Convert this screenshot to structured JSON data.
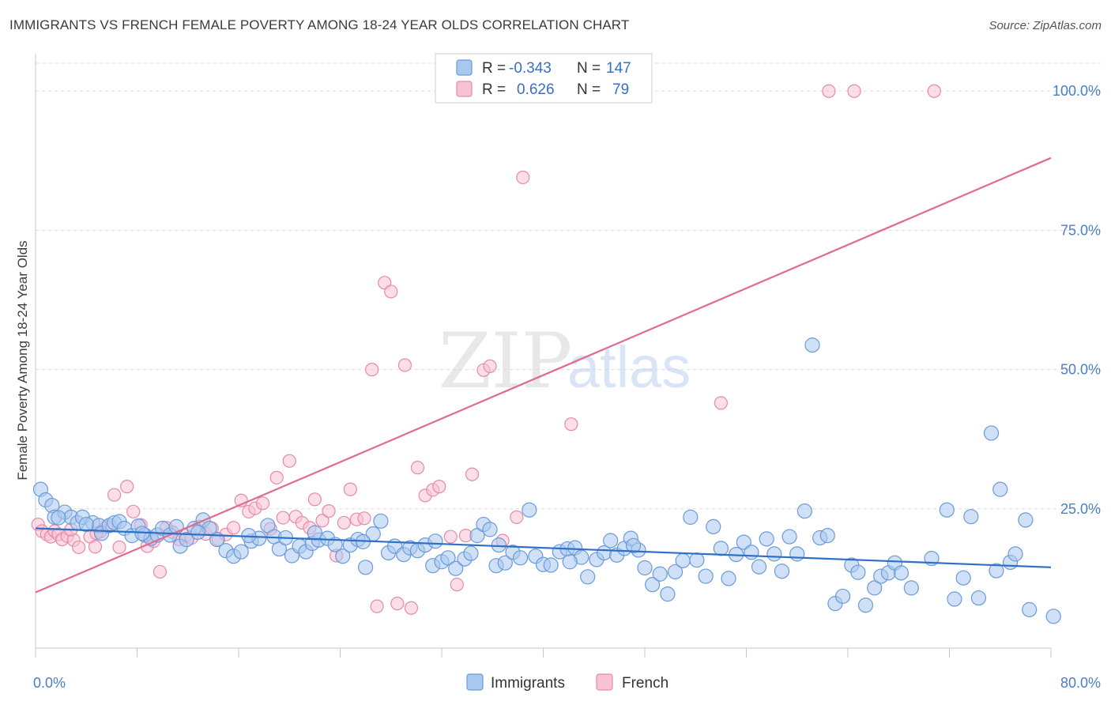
{
  "title": "IMMIGRANTS VS FRENCH FEMALE POVERTY AMONG 18-24 YEAR OLDS CORRELATION CHART",
  "source": "Source: ZipAtlas.com",
  "watermark": {
    "zip": "ZIP",
    "atlas": "atlas"
  },
  "colors": {
    "immigrants_fill": "#a9c8f0",
    "immigrants_stroke": "#6a9ad8",
    "immigrants_line": "#2f6fc6",
    "french_fill": "#f7c3d3",
    "french_stroke": "#e88aa8",
    "french_line": "#e06b92",
    "tick_text": "#4a7fc4",
    "grid": "#dddddd"
  },
  "legend": {
    "rows": [
      {
        "r_label": "R =",
        "r_value": "-0.343",
        "n_label": "N =",
        "n_value": "147"
      },
      {
        "r_label": "R =",
        "r_value": "0.626",
        "n_label": "N =",
        "n_value": "79"
      }
    ]
  },
  "chart_data": {
    "type": "scatter",
    "title": "IMMIGRANTS VS FRENCH FEMALE POVERTY AMONG 18-24 YEAR OLDS CORRELATION CHART",
    "xlabel": "",
    "ylabel": "Female Poverty Among 18-24 Year Olds",
    "xlim": [
      0,
      80
    ],
    "ylim": [
      0,
      105
    ],
    "x_tick_labels": [
      "0.0%",
      "80.0%"
    ],
    "y_ticks": [
      25,
      50,
      75,
      100
    ],
    "y_tick_labels": [
      "25.0%",
      "50.0%",
      "75.0%",
      "100.0%"
    ],
    "grid": true,
    "legend_position": "top-center",
    "series": [
      {
        "name": "Immigrants",
        "color": "#a9c8f0",
        "trend": {
          "x": [
            0,
            80
          ],
          "y": [
            21.5,
            14.5
          ]
        },
        "points": [
          [
            0.4,
            28.5
          ],
          [
            0.8,
            26.6
          ],
          [
            1.3,
            25.6
          ],
          [
            1.5,
            23.5
          ],
          [
            2.3,
            24.4
          ],
          [
            2.8,
            23.5
          ],
          [
            3.3,
            22.5
          ],
          [
            3.7,
            23.5
          ],
          [
            4.5,
            22.5
          ],
          [
            5,
            22
          ],
          [
            5.2,
            20.6
          ],
          [
            5.8,
            22
          ],
          [
            6.2,
            22.5
          ],
          [
            6.6,
            22.7
          ],
          [
            7,
            21.5
          ],
          [
            7.6,
            20.2
          ],
          [
            8.1,
            21.9
          ],
          [
            8.6,
            20.3
          ],
          [
            9.1,
            19.7
          ],
          [
            9.6,
            20.3
          ],
          [
            10,
            21.5
          ],
          [
            10.6,
            20.3
          ],
          [
            11.1,
            21.8
          ],
          [
            11.4,
            18.3
          ],
          [
            11.9,
            19.5
          ],
          [
            12.5,
            21.5
          ],
          [
            13.2,
            23
          ],
          [
            13.7,
            21.5
          ],
          [
            14.3,
            19.5
          ],
          [
            15,
            17.5
          ],
          [
            15.6,
            16.5
          ],
          [
            16.2,
            17.3
          ],
          [
            17,
            19.2
          ],
          [
            17.6,
            19.7
          ],
          [
            18.3,
            22
          ],
          [
            18.8,
            20
          ],
          [
            19.2,
            17.8
          ],
          [
            19.7,
            19.8
          ],
          [
            20.2,
            16.6
          ],
          [
            20.8,
            18.3
          ],
          [
            21.3,
            17.3
          ],
          [
            21.8,
            18.8
          ],
          [
            22.3,
            19.4
          ],
          [
            23,
            19.7
          ],
          [
            23.6,
            18.6
          ],
          [
            24.2,
            16.5
          ],
          [
            24.8,
            18.5
          ],
          [
            25.4,
            19.5
          ],
          [
            26,
            14.5
          ],
          [
            26.6,
            20.5
          ],
          [
            27.2,
            22.8
          ],
          [
            27.8,
            17.1
          ],
          [
            28.3,
            18.3
          ],
          [
            29,
            16.8
          ],
          [
            29.5,
            18
          ],
          [
            30.1,
            17.5
          ],
          [
            30.7,
            18.5
          ],
          [
            31.3,
            14.8
          ],
          [
            32,
            15.5
          ],
          [
            32.5,
            16.2
          ],
          [
            33.1,
            14.3
          ],
          [
            33.8,
            16
          ],
          [
            34.3,
            17
          ],
          [
            34.8,
            20.2
          ],
          [
            35.3,
            22.2
          ],
          [
            35.8,
            21.3
          ],
          [
            36.3,
            14.8
          ],
          [
            37,
            15.3
          ],
          [
            37.6,
            17.2
          ],
          [
            38.2,
            16.2
          ],
          [
            38.9,
            24.8
          ],
          [
            39.4,
            16.5
          ],
          [
            40,
            15
          ],
          [
            40.6,
            14.9
          ],
          [
            41.3,
            17.3
          ],
          [
            41.9,
            17.8
          ],
          [
            42.5,
            18
          ],
          [
            43,
            16.3
          ],
          [
            43.5,
            12.8
          ],
          [
            44.2,
            15.9
          ],
          [
            44.8,
            17.1
          ],
          [
            45.3,
            19.3
          ],
          [
            45.8,
            16.7
          ],
          [
            46.4,
            17.9
          ],
          [
            46.9,
            19.7
          ],
          [
            47.5,
            17.6
          ],
          [
            48,
            14.4
          ],
          [
            48.6,
            11.4
          ],
          [
            49.2,
            13.3
          ],
          [
            49.8,
            9.7
          ],
          [
            50.4,
            13.7
          ],
          [
            51,
            15.7
          ],
          [
            51.6,
            23.5
          ],
          [
            52.1,
            15.8
          ],
          [
            52.8,
            12.9
          ],
          [
            53.4,
            21.8
          ],
          [
            54,
            17.9
          ],
          [
            54.6,
            12.5
          ],
          [
            55.2,
            16.8
          ],
          [
            55.8,
            19
          ],
          [
            56.4,
            17.2
          ],
          [
            57,
            14.6
          ],
          [
            57.6,
            19.6
          ],
          [
            58.2,
            16.9
          ],
          [
            58.8,
            13.8
          ],
          [
            59.4,
            20
          ],
          [
            60,
            16.9
          ],
          [
            60.6,
            24.6
          ],
          [
            61.2,
            54.4
          ],
          [
            61.8,
            19.8
          ],
          [
            62.4,
            20.2
          ],
          [
            63,
            8
          ],
          [
            63.6,
            9.3
          ],
          [
            64.3,
            14.9
          ],
          [
            64.8,
            13.6
          ],
          [
            65.4,
            7.7
          ],
          [
            66.1,
            10.8
          ],
          [
            66.6,
            12.9
          ],
          [
            67.2,
            13.5
          ],
          [
            67.7,
            15.3
          ],
          [
            68.2,
            13.5
          ],
          [
            69,
            10.8
          ],
          [
            70.6,
            16.1
          ],
          [
            71.8,
            24.8
          ],
          [
            72.4,
            8.8
          ],
          [
            73.1,
            12.6
          ],
          [
            73.7,
            23.6
          ],
          [
            74.3,
            9
          ],
          [
            75.3,
            38.6
          ],
          [
            75.7,
            13.9
          ],
          [
            76,
            28.5
          ],
          [
            76.8,
            15.4
          ],
          [
            77.2,
            16.9
          ],
          [
            78,
            23
          ],
          [
            78.3,
            6.9
          ],
          [
            80.2,
            5.7
          ],
          [
            1.8,
            23.4
          ],
          [
            4,
            22.2
          ],
          [
            8.4,
            20.6
          ],
          [
            12.8,
            20.8
          ],
          [
            16.8,
            20.2
          ],
          [
            22,
            20.7
          ],
          [
            25.8,
            19.1
          ],
          [
            31.5,
            19.2
          ],
          [
            36.5,
            18.5
          ],
          [
            42.1,
            15.5
          ],
          [
            47.1,
            18.4
          ]
        ]
      },
      {
        "name": "French",
        "color": "#f7c3d3",
        "trend": {
          "x": [
            0,
            80
          ],
          "y": [
            10,
            88
          ]
        },
        "points": [
          [
            0.2,
            22.2
          ],
          [
            0.5,
            21
          ],
          [
            0.9,
            20.4
          ],
          [
            1.2,
            20
          ],
          [
            1.5,
            21
          ],
          [
            1.8,
            20.4
          ],
          [
            2.1,
            19.5
          ],
          [
            2.5,
            20.1
          ],
          [
            3,
            19.4
          ],
          [
            3.4,
            18.1
          ],
          [
            4.3,
            20
          ],
          [
            4.7,
            18.2
          ],
          [
            5.1,
            20.9
          ],
          [
            5.6,
            21.8
          ],
          [
            6.2,
            27.5
          ],
          [
            6.6,
            18.1
          ],
          [
            7.2,
            29
          ],
          [
            7.7,
            24.5
          ],
          [
            8.3,
            22.1
          ],
          [
            8.8,
            18.3
          ],
          [
            9.3,
            19.2
          ],
          [
            9.8,
            13.7
          ],
          [
            10.3,
            21.6
          ],
          [
            10.8,
            20.8
          ],
          [
            11.3,
            19.5
          ],
          [
            11.8,
            20.2
          ],
          [
            12.3,
            19.8
          ],
          [
            12.9,
            21.8
          ],
          [
            13.4,
            20.5
          ],
          [
            13.9,
            21.5
          ],
          [
            14.4,
            19.5
          ],
          [
            15,
            20.4
          ],
          [
            15.6,
            21.6
          ],
          [
            16.2,
            26.5
          ],
          [
            16.8,
            24.5
          ],
          [
            17.3,
            25.1
          ],
          [
            17.9,
            26
          ],
          [
            18.5,
            21.4
          ],
          [
            19,
            30.6
          ],
          [
            19.5,
            23.4
          ],
          [
            20,
            33.6
          ],
          [
            20.5,
            23.6
          ],
          [
            21,
            22.5
          ],
          [
            21.6,
            21.6
          ],
          [
            22,
            26.7
          ],
          [
            22.6,
            22.9
          ],
          [
            23.1,
            24.6
          ],
          [
            23.7,
            16.6
          ],
          [
            24.3,
            22.5
          ],
          [
            24.8,
            28.5
          ],
          [
            25.3,
            23.1
          ],
          [
            25.9,
            23.3
          ],
          [
            26.5,
            50
          ],
          [
            26.9,
            7.5
          ],
          [
            27.5,
            65.6
          ],
          [
            28,
            64
          ],
          [
            28.5,
            8
          ],
          [
            29.1,
            50.8
          ],
          [
            29.6,
            7.2
          ],
          [
            30.1,
            32.4
          ],
          [
            30.7,
            27.4
          ],
          [
            31.3,
            28.4
          ],
          [
            31.8,
            29
          ],
          [
            32.7,
            20
          ],
          [
            33.2,
            11.4
          ],
          [
            33.9,
            20.2
          ],
          [
            34.4,
            31.2
          ],
          [
            35.3,
            49.9
          ],
          [
            35.8,
            50.6
          ],
          [
            36.8,
            19.3
          ],
          [
            37.9,
            23.5
          ],
          [
            38.4,
            84.5
          ],
          [
            42.2,
            40.2
          ],
          [
            54,
            44
          ],
          [
            62.5,
            100
          ],
          [
            64.5,
            100
          ],
          [
            70.8,
            100
          ],
          [
            2.8,
            21.3
          ],
          [
            4.8,
            20.6
          ]
        ]
      }
    ]
  },
  "bottom_legend": {
    "immigrants": "Immigrants",
    "french": "French"
  }
}
